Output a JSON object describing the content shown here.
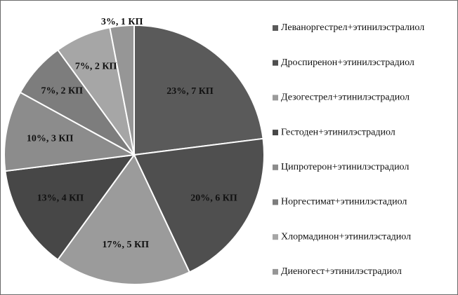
{
  "chart_data": {
    "type": "pie",
    "title": "",
    "start_angle_deg": 0,
    "direction": "clockwise",
    "legend_position": "right",
    "series": [
      {
        "name": "",
        "slices": [
          {
            "label": "Леваноргестрел+этинилэстралиол",
            "percent": 23,
            "count": 7,
            "data_label": "23%, 7 КП",
            "color": "#5a5a5a"
          },
          {
            "label": "Дроспиренон+этинилэстрадиол",
            "percent": 20,
            "count": 6,
            "data_label": "20%, 6 КП",
            "color": "#4f4f4f"
          },
          {
            "label": "Дезогестрел+этинилэстрадиол",
            "percent": 17,
            "count": 5,
            "data_label": "17%, 5 КП",
            "color": "#9b9b9b"
          },
          {
            "label": "Гестоден+этинилэстрадиол",
            "percent": 13,
            "count": 4,
            "data_label": "13%, 4 КП",
            "color": "#474747"
          },
          {
            "label": "Ципротерон+этинилэстрадиол",
            "percent": 10,
            "count": 3,
            "data_label": "10%, 3 КП",
            "color": "#8c8c8c"
          },
          {
            "label": "Норгестимат+этинилэстадиол",
            "percent": 7,
            "count": 2,
            "data_label": "7%, 2 КП",
            "color": "#7d7d7d"
          },
          {
            "label": "Хлормадинон+этинилэстадиол",
            "percent": 7,
            "count": 2,
            "data_label": "7%, 2 КП",
            "color": "#a6a6a6"
          },
          {
            "label": "Диеногест+этинилэстрадиол",
            "percent": 3,
            "count": 1,
            "data_label": "3%, 1 КП",
            "color": "#969696"
          }
        ]
      }
    ]
  }
}
